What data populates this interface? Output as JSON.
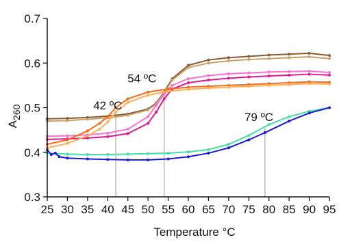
{
  "chart_data": {
    "type": "line",
    "title": "",
    "xlabel": "Temperature °C",
    "ylabel_base": "A",
    "ylabel_sub": "260",
    "xlim": [
      25,
      95
    ],
    "ylim": [
      0.3,
      0.7
    ],
    "x_ticks": [
      25,
      30,
      35,
      40,
      45,
      50,
      55,
      60,
      65,
      70,
      75,
      80,
      85,
      90,
      95
    ],
    "y_ticks": [
      0.3,
      0.4,
      0.5,
      0.6,
      0.7
    ],
    "y_tick_labels": [
      "0.3",
      "0.4",
      "0.5",
      "0.6",
      "0.7"
    ],
    "grid": false,
    "legend": "none",
    "series": [
      {
        "color": "#8b5a2b",
        "x": [
          25,
          30,
          35,
          40,
          45,
          50,
          52,
          54,
          56,
          60,
          65,
          70,
          75,
          80,
          85,
          90,
          95
        ],
        "y": [
          0.475,
          0.476,
          0.478,
          0.481,
          0.486,
          0.497,
          0.51,
          0.535,
          0.565,
          0.595,
          0.607,
          0.612,
          0.615,
          0.618,
          0.62,
          0.622,
          0.617
        ]
      },
      {
        "color": "#c8a070",
        "x": [
          25,
          30,
          35,
          40,
          45,
          50,
          52,
          54,
          56,
          60,
          65,
          70,
          75,
          80,
          85,
          90,
          95
        ],
        "y": [
          0.47,
          0.471,
          0.474,
          0.477,
          0.483,
          0.495,
          0.508,
          0.532,
          0.562,
          0.59,
          0.6,
          0.605,
          0.608,
          0.61,
          0.612,
          0.614,
          0.61
        ]
      },
      {
        "color": "#ff6fcf",
        "x": [
          25,
          30,
          35,
          40,
          45,
          50,
          52,
          54,
          56,
          60,
          65,
          70,
          75,
          80,
          85,
          90,
          95
        ],
        "y": [
          0.436,
          0.437,
          0.439,
          0.443,
          0.452,
          0.48,
          0.505,
          0.53,
          0.55,
          0.565,
          0.572,
          0.576,
          0.578,
          0.58,
          0.581,
          0.582,
          0.579
        ]
      },
      {
        "color": "#e0188f",
        "x": [
          25,
          30,
          35,
          40,
          45,
          50,
          52,
          54,
          56,
          60,
          65,
          70,
          75,
          80,
          85,
          90,
          95
        ],
        "y": [
          0.429,
          0.43,
          0.432,
          0.435,
          0.442,
          0.465,
          0.49,
          0.52,
          0.542,
          0.556,
          0.562,
          0.566,
          0.569,
          0.571,
          0.573,
          0.575,
          0.573
        ]
      },
      {
        "color": "#ff6a10",
        "x": [
          25,
          30,
          35,
          38,
          40,
          42,
          45,
          50,
          55,
          60,
          65,
          70,
          75,
          80,
          85,
          90,
          95
        ],
        "y": [
          0.418,
          0.428,
          0.448,
          0.465,
          0.48,
          0.5,
          0.52,
          0.535,
          0.542,
          0.546,
          0.548,
          0.55,
          0.552,
          0.554,
          0.556,
          0.558,
          0.557
        ]
      },
      {
        "color": "#ffae60",
        "x": [
          25,
          30,
          35,
          38,
          40,
          42,
          45,
          50,
          55,
          60,
          65,
          70,
          75,
          80,
          85,
          90,
          95
        ],
        "y": [
          0.41,
          0.42,
          0.437,
          0.452,
          0.468,
          0.49,
          0.512,
          0.528,
          0.537,
          0.541,
          0.544,
          0.546,
          0.548,
          0.55,
          0.552,
          0.554,
          0.553
        ]
      },
      {
        "color": "#40e0a8",
        "x": [
          25,
          30,
          35,
          40,
          45,
          50,
          55,
          60,
          65,
          70,
          75,
          80,
          85,
          90,
          95
        ],
        "y": [
          0.398,
          0.396,
          0.395,
          0.395,
          0.396,
          0.397,
          0.398,
          0.401,
          0.406,
          0.418,
          0.438,
          0.462,
          0.48,
          0.492,
          0.5
        ]
      },
      {
        "color": "#1a1ad6",
        "x": [
          25,
          26,
          27,
          28,
          30,
          35,
          40,
          45,
          50,
          55,
          60,
          65,
          70,
          75,
          79,
          85,
          90,
          95
        ],
        "y": [
          0.405,
          0.395,
          0.398,
          0.39,
          0.387,
          0.385,
          0.384,
          0.383,
          0.383,
          0.385,
          0.39,
          0.398,
          0.41,
          0.428,
          0.444,
          0.47,
          0.488,
          0.5
        ]
      }
    ],
    "reference_lines": [
      {
        "x": 42,
        "y_top": 0.49,
        "color": "#aaaaaa"
      },
      {
        "x": 54,
        "y_top": 0.53,
        "color": "#aaaaaa"
      },
      {
        "x": 79,
        "y_top": 0.455,
        "color": "#aaaaaa"
      }
    ],
    "annotations": [
      {
        "text": "42 ºC",
        "x": 40,
        "y": 0.496
      },
      {
        "text": "54 ºC",
        "x": 48.5,
        "y": 0.557
      },
      {
        "text": "79 ºC",
        "x": 77.5,
        "y": 0.47
      }
    ]
  }
}
